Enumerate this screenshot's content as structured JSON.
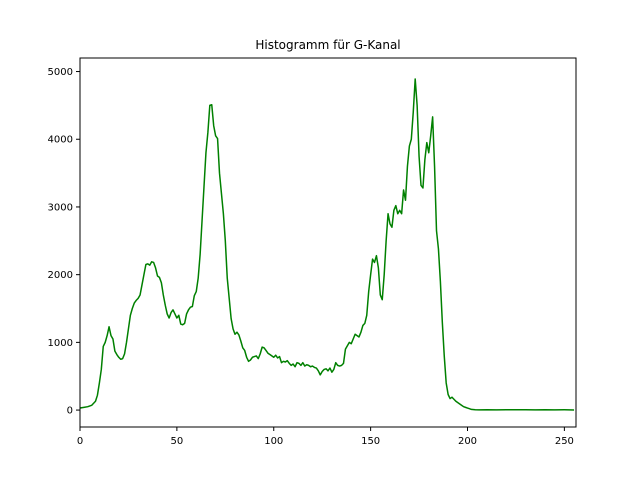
{
  "chart_data": {
    "type": "line",
    "title": "Histogramm für G-Kanal",
    "xlabel": "",
    "ylabel": "",
    "xlim": [
      0,
      256
    ],
    "ylim": [
      -250,
      5200
    ],
    "xticks": [
      0,
      50,
      100,
      150,
      200,
      250
    ],
    "yticks": [
      0,
      1000,
      2000,
      3000,
      4000,
      5000
    ],
    "grid": false,
    "series": [
      {
        "color": "#008000",
        "points": [
          [
            0,
            30
          ],
          [
            2,
            40
          ],
          [
            4,
            50
          ],
          [
            6,
            70
          ],
          [
            8,
            130
          ],
          [
            9,
            220
          ],
          [
            10,
            400
          ],
          [
            11,
            600
          ],
          [
            12,
            940
          ],
          [
            13,
            1000
          ],
          [
            14,
            1100
          ],
          [
            15,
            1230
          ],
          [
            16,
            1100
          ],
          [
            17,
            1050
          ],
          [
            18,
            870
          ],
          [
            19,
            820
          ],
          [
            20,
            780
          ],
          [
            21,
            750
          ],
          [
            22,
            760
          ],
          [
            23,
            830
          ],
          [
            24,
            1000
          ],
          [
            25,
            1200
          ],
          [
            26,
            1400
          ],
          [
            27,
            1500
          ],
          [
            28,
            1580
          ],
          [
            29,
            1620
          ],
          [
            30,
            1650
          ],
          [
            31,
            1700
          ],
          [
            32,
            1850
          ],
          [
            33,
            2000
          ],
          [
            34,
            2150
          ],
          [
            35,
            2160
          ],
          [
            36,
            2140
          ],
          [
            37,
            2190
          ],
          [
            38,
            2180
          ],
          [
            39,
            2100
          ],
          [
            40,
            1980
          ],
          [
            41,
            1960
          ],
          [
            42,
            1880
          ],
          [
            43,
            1700
          ],
          [
            44,
            1550
          ],
          [
            45,
            1420
          ],
          [
            46,
            1360
          ],
          [
            47,
            1440
          ],
          [
            48,
            1480
          ],
          [
            49,
            1420
          ],
          [
            50,
            1360
          ],
          [
            51,
            1400
          ],
          [
            52,
            1270
          ],
          [
            53,
            1260
          ],
          [
            54,
            1280
          ],
          [
            55,
            1420
          ],
          [
            56,
            1480
          ],
          [
            57,
            1520
          ],
          [
            58,
            1530
          ],
          [
            59,
            1690
          ],
          [
            60,
            1750
          ],
          [
            61,
            1950
          ],
          [
            62,
            2300
          ],
          [
            63,
            2800
          ],
          [
            64,
            3300
          ],
          [
            65,
            3800
          ],
          [
            66,
            4100
          ],
          [
            67,
            4500
          ],
          [
            68,
            4510
          ],
          [
            69,
            4200
          ],
          [
            70,
            4050
          ],
          [
            71,
            4010
          ],
          [
            72,
            3500
          ],
          [
            73,
            3200
          ],
          [
            74,
            2900
          ],
          [
            75,
            2500
          ],
          [
            76,
            1950
          ],
          [
            77,
            1650
          ],
          [
            78,
            1350
          ],
          [
            79,
            1200
          ],
          [
            80,
            1120
          ],
          [
            81,
            1150
          ],
          [
            82,
            1110
          ],
          [
            83,
            1020
          ],
          [
            84,
            920
          ],
          [
            85,
            880
          ],
          [
            86,
            780
          ],
          [
            87,
            720
          ],
          [
            88,
            740
          ],
          [
            89,
            780
          ],
          [
            90,
            790
          ],
          [
            91,
            800
          ],
          [
            92,
            760
          ],
          [
            93,
            830
          ],
          [
            94,
            930
          ],
          [
            95,
            920
          ],
          [
            96,
            880
          ],
          [
            97,
            840
          ],
          [
            98,
            820
          ],
          [
            99,
            800
          ],
          [
            100,
            780
          ],
          [
            101,
            810
          ],
          [
            102,
            770
          ],
          [
            103,
            790
          ],
          [
            104,
            700
          ],
          [
            105,
            720
          ],
          [
            106,
            710
          ],
          [
            107,
            730
          ],
          [
            108,
            690
          ],
          [
            109,
            660
          ],
          [
            110,
            680
          ],
          [
            111,
            640
          ],
          [
            112,
            700
          ],
          [
            113,
            690
          ],
          [
            114,
            660
          ],
          [
            115,
            700
          ],
          [
            116,
            650
          ],
          [
            117,
            670
          ],
          [
            118,
            660
          ],
          [
            119,
            640
          ],
          [
            120,
            650
          ],
          [
            121,
            630
          ],
          [
            122,
            620
          ],
          [
            123,
            580
          ],
          [
            124,
            520
          ],
          [
            125,
            570
          ],
          [
            126,
            600
          ],
          [
            127,
            610
          ],
          [
            128,
            580
          ],
          [
            129,
            620
          ],
          [
            130,
            560
          ],
          [
            131,
            600
          ],
          [
            132,
            700
          ],
          [
            133,
            660
          ],
          [
            134,
            650
          ],
          [
            135,
            660
          ],
          [
            136,
            690
          ],
          [
            137,
            900
          ],
          [
            138,
            950
          ],
          [
            139,
            1000
          ],
          [
            140,
            980
          ],
          [
            141,
            1050
          ],
          [
            142,
            1120
          ],
          [
            143,
            1100
          ],
          [
            144,
            1080
          ],
          [
            145,
            1150
          ],
          [
            146,
            1250
          ],
          [
            147,
            1280
          ],
          [
            148,
            1400
          ],
          [
            149,
            1750
          ],
          [
            150,
            2000
          ],
          [
            151,
            2230
          ],
          [
            152,
            2180
          ],
          [
            153,
            2280
          ],
          [
            154,
            2100
          ],
          [
            155,
            1700
          ],
          [
            156,
            1630
          ],
          [
            157,
            2000
          ],
          [
            158,
            2500
          ],
          [
            159,
            2900
          ],
          [
            160,
            2750
          ],
          [
            161,
            2700
          ],
          [
            162,
            2950
          ],
          [
            163,
            3020
          ],
          [
            164,
            2900
          ],
          [
            165,
            2950
          ],
          [
            166,
            2900
          ],
          [
            167,
            3250
          ],
          [
            168,
            3100
          ],
          [
            169,
            3600
          ],
          [
            170,
            3900
          ],
          [
            171,
            4000
          ],
          [
            172,
            4400
          ],
          [
            173,
            4890
          ],
          [
            174,
            4500
          ],
          [
            175,
            3750
          ],
          [
            176,
            3320
          ],
          [
            177,
            3280
          ],
          [
            178,
            3700
          ],
          [
            179,
            3950
          ],
          [
            180,
            3800
          ],
          [
            181,
            4050
          ],
          [
            182,
            4330
          ],
          [
            183,
            3600
          ],
          [
            184,
            2650
          ],
          [
            185,
            2380
          ],
          [
            186,
            1900
          ],
          [
            187,
            1300
          ],
          [
            188,
            800
          ],
          [
            189,
            400
          ],
          [
            190,
            230
          ],
          [
            191,
            170
          ],
          [
            192,
            190
          ],
          [
            193,
            160
          ],
          [
            194,
            130
          ],
          [
            195,
            110
          ],
          [
            196,
            90
          ],
          [
            197,
            70
          ],
          [
            198,
            50
          ],
          [
            199,
            40
          ],
          [
            200,
            30
          ],
          [
            201,
            20
          ],
          [
            202,
            10
          ],
          [
            204,
            5
          ],
          [
            206,
            3
          ],
          [
            210,
            5
          ],
          [
            215,
            3
          ],
          [
            220,
            5
          ],
          [
            225,
            4
          ],
          [
            230,
            5
          ],
          [
            235,
            3
          ],
          [
            240,
            5
          ],
          [
            245,
            3
          ],
          [
            250,
            4
          ],
          [
            255,
            2
          ]
        ]
      }
    ]
  }
}
